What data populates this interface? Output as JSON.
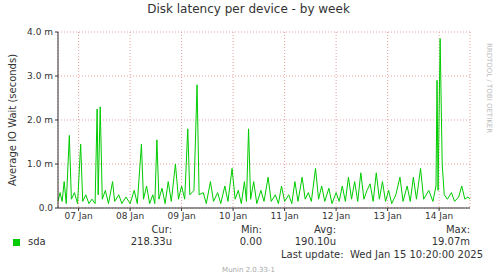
{
  "chart_data": {
    "type": "line",
    "title": "Disk latency per device - by week",
    "y_label": "Average IO Wait (seconds)",
    "x": [
      7.1,
      7.14,
      7.18,
      7.22,
      7.26,
      7.32,
      7.36,
      7.42,
      7.48,
      7.54,
      7.58,
      7.64,
      7.7,
      7.76,
      7.82,
      7.86,
      7.88,
      7.92,
      7.96,
      8.02,
      8.08,
      8.16,
      8.2,
      8.28,
      8.34,
      8.42,
      8.5,
      8.58,
      8.64,
      8.72,
      8.76,
      8.82,
      8.88,
      8.94,
      8.98,
      9.02,
      9.06,
      9.12,
      9.18,
      9.24,
      9.3,
      9.38,
      9.44,
      9.5,
      9.56,
      9.62,
      9.66,
      9.74,
      9.8,
      9.84,
      9.92,
      9.98,
      10.06,
      10.12,
      10.2,
      10.26,
      10.34,
      10.4,
      10.48,
      10.54,
      10.6,
      10.66,
      10.72,
      10.76,
      10.8,
      10.84,
      10.9,
      10.96,
      11.04,
      11.1,
      11.18,
      11.24,
      11.32,
      11.38,
      11.44,
      11.5,
      11.58,
      11.64,
      11.7,
      11.76,
      11.84,
      11.9,
      11.96,
      12.02,
      12.1,
      12.16,
      12.22,
      12.28,
      12.36,
      12.42,
      12.5,
      12.56,
      12.62,
      12.68,
      12.74,
      12.8,
      12.86,
      12.92,
      12.98,
      13.04,
      13.1,
      13.16,
      13.22,
      13.28,
      13.34,
      13.4,
      13.46,
      13.52,
      13.58,
      13.66,
      13.74,
      13.8,
      13.88,
      13.94,
      14.0,
      14.06,
      14.14,
      14.2,
      14.3,
      14.38,
      14.44,
      14.46,
      14.48,
      14.52,
      14.56,
      14.6,
      14.66,
      14.74,
      14.8,
      14.88,
      14.94,
      15.0,
      15.06,
      15.1
    ],
    "series": [
      {
        "name": "sda",
        "color": "#00cc00",
        "values": [
          0.00015,
          0.00035,
          0.00015,
          0.0006,
          0.0001,
          0.00165,
          0.0002,
          0.00035,
          0.0001,
          0.00145,
          0.00015,
          0.0003,
          0.0001,
          0.0002,
          0.0001,
          0.00225,
          0.0003,
          0.0023,
          0.0002,
          0.0004,
          0.0001,
          0.0006,
          0.00015,
          0.0003,
          0.0001,
          0.00025,
          0.0001,
          0.0004,
          0.0001,
          0.00145,
          0.0002,
          0.0005,
          0.0001,
          0.0003,
          0.0001,
          0.00155,
          0.0002,
          0.00045,
          0.0001,
          0.0006,
          0.00015,
          0.001,
          0.0002,
          0.0005,
          0.0002,
          0.0018,
          0.0003,
          0.0004,
          0.0028,
          0.0003,
          0.00035,
          0.0001,
          0.0006,
          0.00015,
          0.00035,
          0.0001,
          0.0005,
          0.00015,
          0.0009,
          0.0002,
          0.0004,
          0.0001,
          0.0006,
          0.00015,
          0.0018,
          0.0002,
          0.0006,
          0.0001,
          0.0004,
          0.00015,
          0.0007,
          0.00015,
          0.0003,
          0.0001,
          0.0005,
          0.00015,
          0.0003,
          0.0001,
          0.0006,
          0.00015,
          0.0007,
          0.0002,
          0.00035,
          0.00015,
          0.0009,
          0.0002,
          0.0005,
          0.00015,
          0.00045,
          0.0001,
          0.00035,
          0.00015,
          0.0005,
          0.00015,
          0.0007,
          0.0002,
          0.0006,
          0.00015,
          0.0008,
          0.0002,
          0.0004,
          0.00055,
          0.00015,
          0.0008,
          0.0002,
          0.0006,
          0.00015,
          0.0004,
          0.0001,
          0.0003,
          0.0007,
          0.00015,
          0.0005,
          0.00015,
          0.0007,
          0.0002,
          0.0009,
          0.0002,
          0.0004,
          0.00015,
          0.0005,
          0.0029,
          0.0004,
          0.00385,
          0.001,
          0.0003,
          0.0002,
          0.00035,
          0.00015,
          0.00025,
          0.0005,
          0.0002,
          0.00025,
          0.0002
        ]
      }
    ],
    "xlim": [
      7.1,
      15.1
    ],
    "xticks": [
      {
        "value": 7.5,
        "label": "07 Jan"
      },
      {
        "value": 8.5,
        "label": "08 Jan"
      },
      {
        "value": 9.5,
        "label": "09 Jan"
      },
      {
        "value": 10.5,
        "label": "10 Jan"
      },
      {
        "value": 11.5,
        "label": "11 Jan"
      },
      {
        "value": 12.5,
        "label": "12 Jan"
      },
      {
        "value": 13.5,
        "label": "13 Jan"
      },
      {
        "value": 14.5,
        "label": "14 Jan"
      }
    ],
    "ylim": [
      0,
      0.004
    ],
    "yticks": [
      {
        "value": 0,
        "label": "0.0"
      },
      {
        "value": 0.001,
        "label": "1.0 m"
      },
      {
        "value": 0.002,
        "label": "2.0 m"
      },
      {
        "value": 0.003,
        "label": "3.0 m"
      },
      {
        "value": 0.004,
        "label": "4.0 m"
      }
    ],
    "grid": true,
    "stats": [
      {
        "name": "Cur:",
        "value": 0.00021833,
        "label": "218.33u"
      },
      {
        "name": "Min:",
        "value": 0,
        "label": "0.00"
      },
      {
        "name": "Avg:",
        "value": 0.0001901,
        "label": "190.10u"
      },
      {
        "name": "Max:",
        "value": 0.01907,
        "label": "19.07m"
      }
    ],
    "footer": "Last update:  Wed Jan 15 10:20:00 2025",
    "credit": "Munin 2.0.33-1",
    "watermark": "RRDTOOL / TOBI OETIKER"
  }
}
